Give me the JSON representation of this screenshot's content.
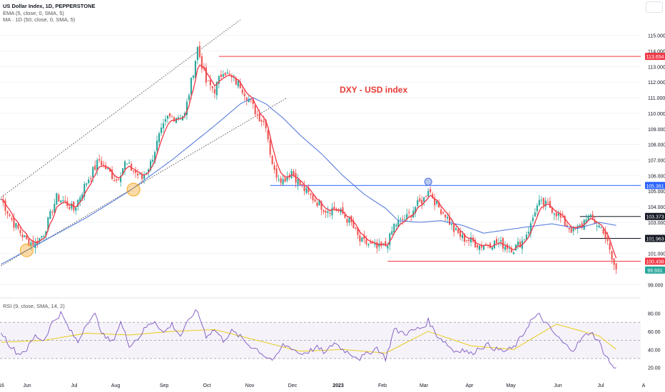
{
  "header": {
    "title": "US Dollar Index, 1D, PEPPERSTONE",
    "ema_label": "EMA (5, close, 0, SMA, 5)",
    "ma_label": "MA · 1D (50, close, 0, SMA, 5)"
  },
  "annotation": "DXY - USD index",
  "colors": {
    "up": "#26a69a",
    "down": "#ef5350",
    "ema": "#f23645",
    "ma": "#4a72d9",
    "resistance_red": "#f23645",
    "support_blue": "#2962ff",
    "rsi_line": "#7e57c2",
    "rsi_ma": "#e8c900",
    "rsi_band": "#7e57c2"
  },
  "chart_data": [
    {
      "type": "candlestick",
      "title": "US Dollar Index, 1D, PEPPERSTONE",
      "x_tick_labels": [
        "16",
        "Jun",
        "Jul",
        "Aug",
        "Sep",
        "Oct",
        "Nov",
        "Dec",
        "2023",
        "Feb",
        "Mar",
        "Apr",
        "May",
        "Jun",
        "Jul",
        "A"
      ],
      "y_tick_labels": [
        "99.000",
        "100.000",
        "101.000",
        "102.000",
        "103.000",
        "104.000",
        "105.000",
        "106.000",
        "107.000",
        "108.000",
        "109.000",
        "110.000",
        "111.000",
        "112.000",
        "113.000",
        "114.000",
        "115.000"
      ],
      "ylim": [
        98.6,
        115.9
      ],
      "close_anchors": [
        [
          0,
          104.5
        ],
        [
          6,
          102.9
        ],
        [
          12,
          101.8
        ],
        [
          16,
          101.6
        ],
        [
          20,
          102.3
        ],
        [
          26,
          104.6
        ],
        [
          30,
          104.3
        ],
        [
          34,
          103.8
        ],
        [
          40,
          105.6
        ],
        [
          46,
          107.0
        ],
        [
          50,
          106.3
        ],
        [
          54,
          105.7
        ],
        [
          58,
          106.8
        ],
        [
          62,
          106.3
        ],
        [
          66,
          105.8
        ],
        [
          70,
          106.8
        ],
        [
          74,
          108.5
        ],
        [
          78,
          109.7
        ],
        [
          82,
          109.8
        ],
        [
          86,
          109.9
        ],
        [
          90,
          112.7
        ],
        [
          92,
          114.2
        ],
        [
          96,
          112.0
        ],
        [
          100,
          111.5
        ],
        [
          104,
          112.8
        ],
        [
          108,
          112.2
        ],
        [
          112,
          111.8
        ],
        [
          116,
          110.9
        ],
        [
          120,
          109.9
        ],
        [
          124,
          109.3
        ],
        [
          126,
          107.5
        ],
        [
          128,
          106.2
        ],
        [
          132,
          105.7
        ],
        [
          136,
          106.3
        ],
        [
          140,
          105.4
        ],
        [
          144,
          104.8
        ],
        [
          148,
          104.3
        ],
        [
          152,
          103.8
        ],
        [
          156,
          103.9
        ],
        [
          160,
          103.5
        ],
        [
          164,
          102.9
        ],
        [
          168,
          101.8
        ],
        [
          172,
          101.6
        ],
        [
          176,
          101.3
        ],
        [
          180,
          101.5
        ],
        [
          182,
          102.0
        ],
        [
          184,
          102.8
        ],
        [
          186,
          103.0
        ],
        [
          190,
          103.3
        ],
        [
          194,
          104.0
        ],
        [
          198,
          104.5
        ],
        [
          200,
          105.2
        ],
        [
          204,
          104.1
        ],
        [
          208,
          103.5
        ],
        [
          212,
          102.5
        ],
        [
          216,
          102.0
        ],
        [
          220,
          101.8
        ],
        [
          224,
          101.5
        ],
        [
          228,
          101.6
        ],
        [
          232,
          101.7
        ],
        [
          236,
          101.5
        ],
        [
          240,
          101.3
        ],
        [
          244,
          101.8
        ],
        [
          248,
          102.8
        ],
        [
          250,
          103.8
        ],
        [
          252,
          104.2
        ],
        [
          256,
          104.1
        ],
        [
          260,
          103.6
        ],
        [
          264,
          102.9
        ],
        [
          268,
          102.4
        ],
        [
          272,
          102.8
        ],
        [
          274,
          103.4
        ],
        [
          278,
          103.0
        ],
        [
          282,
          102.5
        ],
        [
          284,
          101.6
        ],
        [
          286,
          100.6
        ],
        [
          288,
          99.9
        ]
      ],
      "ema_5": "EMA (5, close, 0, SMA, 5)",
      "ma_50": "MA · 1D (50, close, 0, SMA, 5)",
      "ma_anchors": [
        [
          0,
          100.3
        ],
        [
          20,
          101.8
        ],
        [
          40,
          103.3
        ],
        [
          60,
          105.0
        ],
        [
          80,
          107.0
        ],
        [
          100,
          109.2
        ],
        [
          112,
          110.6
        ],
        [
          118,
          111.0
        ],
        [
          124,
          110.6
        ],
        [
          132,
          109.7
        ],
        [
          140,
          108.6
        ],
        [
          150,
          107.4
        ],
        [
          160,
          106.0
        ],
        [
          170,
          104.8
        ],
        [
          180,
          103.9
        ],
        [
          186,
          103.1
        ],
        [
          196,
          103.0
        ],
        [
          206,
          103.1
        ],
        [
          216,
          102.8
        ],
        [
          226,
          102.3
        ],
        [
          236,
          102.5
        ],
        [
          246,
          102.7
        ],
        [
          258,
          102.9
        ],
        [
          270,
          102.6
        ],
        [
          280,
          103.0
        ],
        [
          288,
          102.8
        ]
      ],
      "levels": [
        {
          "label": "113.654",
          "value": 113.654,
          "color": "#f23645",
          "from": 102,
          "to": 299
        },
        {
          "label": "105.361",
          "value": 105.361,
          "color": "#2962ff",
          "from": 126,
          "to": 299
        },
        {
          "label": "103.373",
          "value": 103.373,
          "color": "#131722",
          "from": 271,
          "to": 299
        },
        {
          "label": "101.963",
          "value": 101.963,
          "color": "#131722",
          "from": 271,
          "to": 299
        },
        {
          "label": "100.498",
          "value": 100.498,
          "color": "#f23645",
          "from": 181,
          "to": 299
        },
        {
          "label": "99.931",
          "value": 99.931,
          "color": "#26a69a",
          "current": true
        }
      ],
      "trendlines": [
        {
          "style": "dotted",
          "x1": 0,
          "y1": 104.6,
          "x2": 112,
          "y2": 116.0
        },
        {
          "style": "dotted",
          "x1": 0,
          "y1": 100.2,
          "x2": 134,
          "y2": 111.0
        }
      ],
      "markers": [
        {
          "shape": "circle",
          "color": "#f5a623",
          "x": 12,
          "y": 101.2
        },
        {
          "shape": "circle",
          "color": "#f5a623",
          "x": 62,
          "y": 105.1
        },
        {
          "shape": "circle",
          "color": "#4a72d9",
          "x": 200,
          "y": 105.6
        }
      ]
    },
    {
      "type": "line",
      "title": "RSI (9, close, SMA, 14, 2)",
      "y_tick_labels": [
        "20.00",
        "40.00",
        "60.00",
        "80.00"
      ],
      "ylim": [
        15,
        86
      ],
      "bands": {
        "upper": 70,
        "middle": 50,
        "lower": 30
      },
      "rsi_anchors": [
        [
          0,
          60
        ],
        [
          4,
          45
        ],
        [
          8,
          35
        ],
        [
          12,
          40
        ],
        [
          16,
          55
        ],
        [
          20,
          50
        ],
        [
          24,
          70
        ],
        [
          28,
          80
        ],
        [
          32,
          62
        ],
        [
          36,
          48
        ],
        [
          40,
          70
        ],
        [
          44,
          78
        ],
        [
          48,
          55
        ],
        [
          52,
          48
        ],
        [
          56,
          70
        ],
        [
          60,
          45
        ],
        [
          64,
          52
        ],
        [
          68,
          65
        ],
        [
          72,
          72
        ],
        [
          76,
          58
        ],
        [
          80,
          68
        ],
        [
          84,
          55
        ],
        [
          88,
          72
        ],
        [
          90,
          80
        ],
        [
          92,
          82
        ],
        [
          96,
          55
        ],
        [
          100,
          62
        ],
        [
          104,
          50
        ],
        [
          108,
          60
        ],
        [
          112,
          54
        ],
        [
          116,
          45
        ],
        [
          120,
          40
        ],
        [
          124,
          32
        ],
        [
          128,
          28
        ],
        [
          132,
          45
        ],
        [
          136,
          42
        ],
        [
          140,
          35
        ],
        [
          144,
          38
        ],
        [
          148,
          42
        ],
        [
          152,
          36
        ],
        [
          156,
          48
        ],
        [
          160,
          40
        ],
        [
          164,
          35
        ],
        [
          168,
          30
        ],
        [
          172,
          36
        ],
        [
          176,
          42
        ],
        [
          180,
          30
        ],
        [
          182,
          45
        ],
        [
          184,
          62
        ],
        [
          186,
          60
        ],
        [
          190,
          58
        ],
        [
          194,
          62
        ],
        [
          198,
          65
        ],
        [
          200,
          72
        ],
        [
          204,
          56
        ],
        [
          208,
          48
        ],
        [
          212,
          38
        ],
        [
          216,
          40
        ],
        [
          220,
          35
        ],
        [
          224,
          42
        ],
        [
          228,
          45
        ],
        [
          232,
          40
        ],
        [
          236,
          38
        ],
        [
          240,
          42
        ],
        [
          244,
          55
        ],
        [
          248,
          72
        ],
        [
          252,
          78
        ],
        [
          256,
          66
        ],
        [
          260,
          55
        ],
        [
          264,
          45
        ],
        [
          268,
          40
        ],
        [
          272,
          52
        ],
        [
          276,
          60
        ],
        [
          280,
          48
        ],
        [
          282,
          38
        ],
        [
          284,
          30
        ],
        [
          286,
          22
        ],
        [
          288,
          18
        ]
      ],
      "rsi_ma_anchors": [
        [
          0,
          48
        ],
        [
          20,
          50
        ],
        [
          40,
          58
        ],
        [
          60,
          56
        ],
        [
          80,
          60
        ],
        [
          100,
          62
        ],
        [
          120,
          50
        ],
        [
          140,
          38
        ],
        [
          160,
          40
        ],
        [
          180,
          36
        ],
        [
          200,
          60
        ],
        [
          220,
          44
        ],
        [
          240,
          40
        ],
        [
          260,
          68
        ],
        [
          280,
          55
        ],
        [
          288,
          40
        ]
      ]
    }
  ]
}
